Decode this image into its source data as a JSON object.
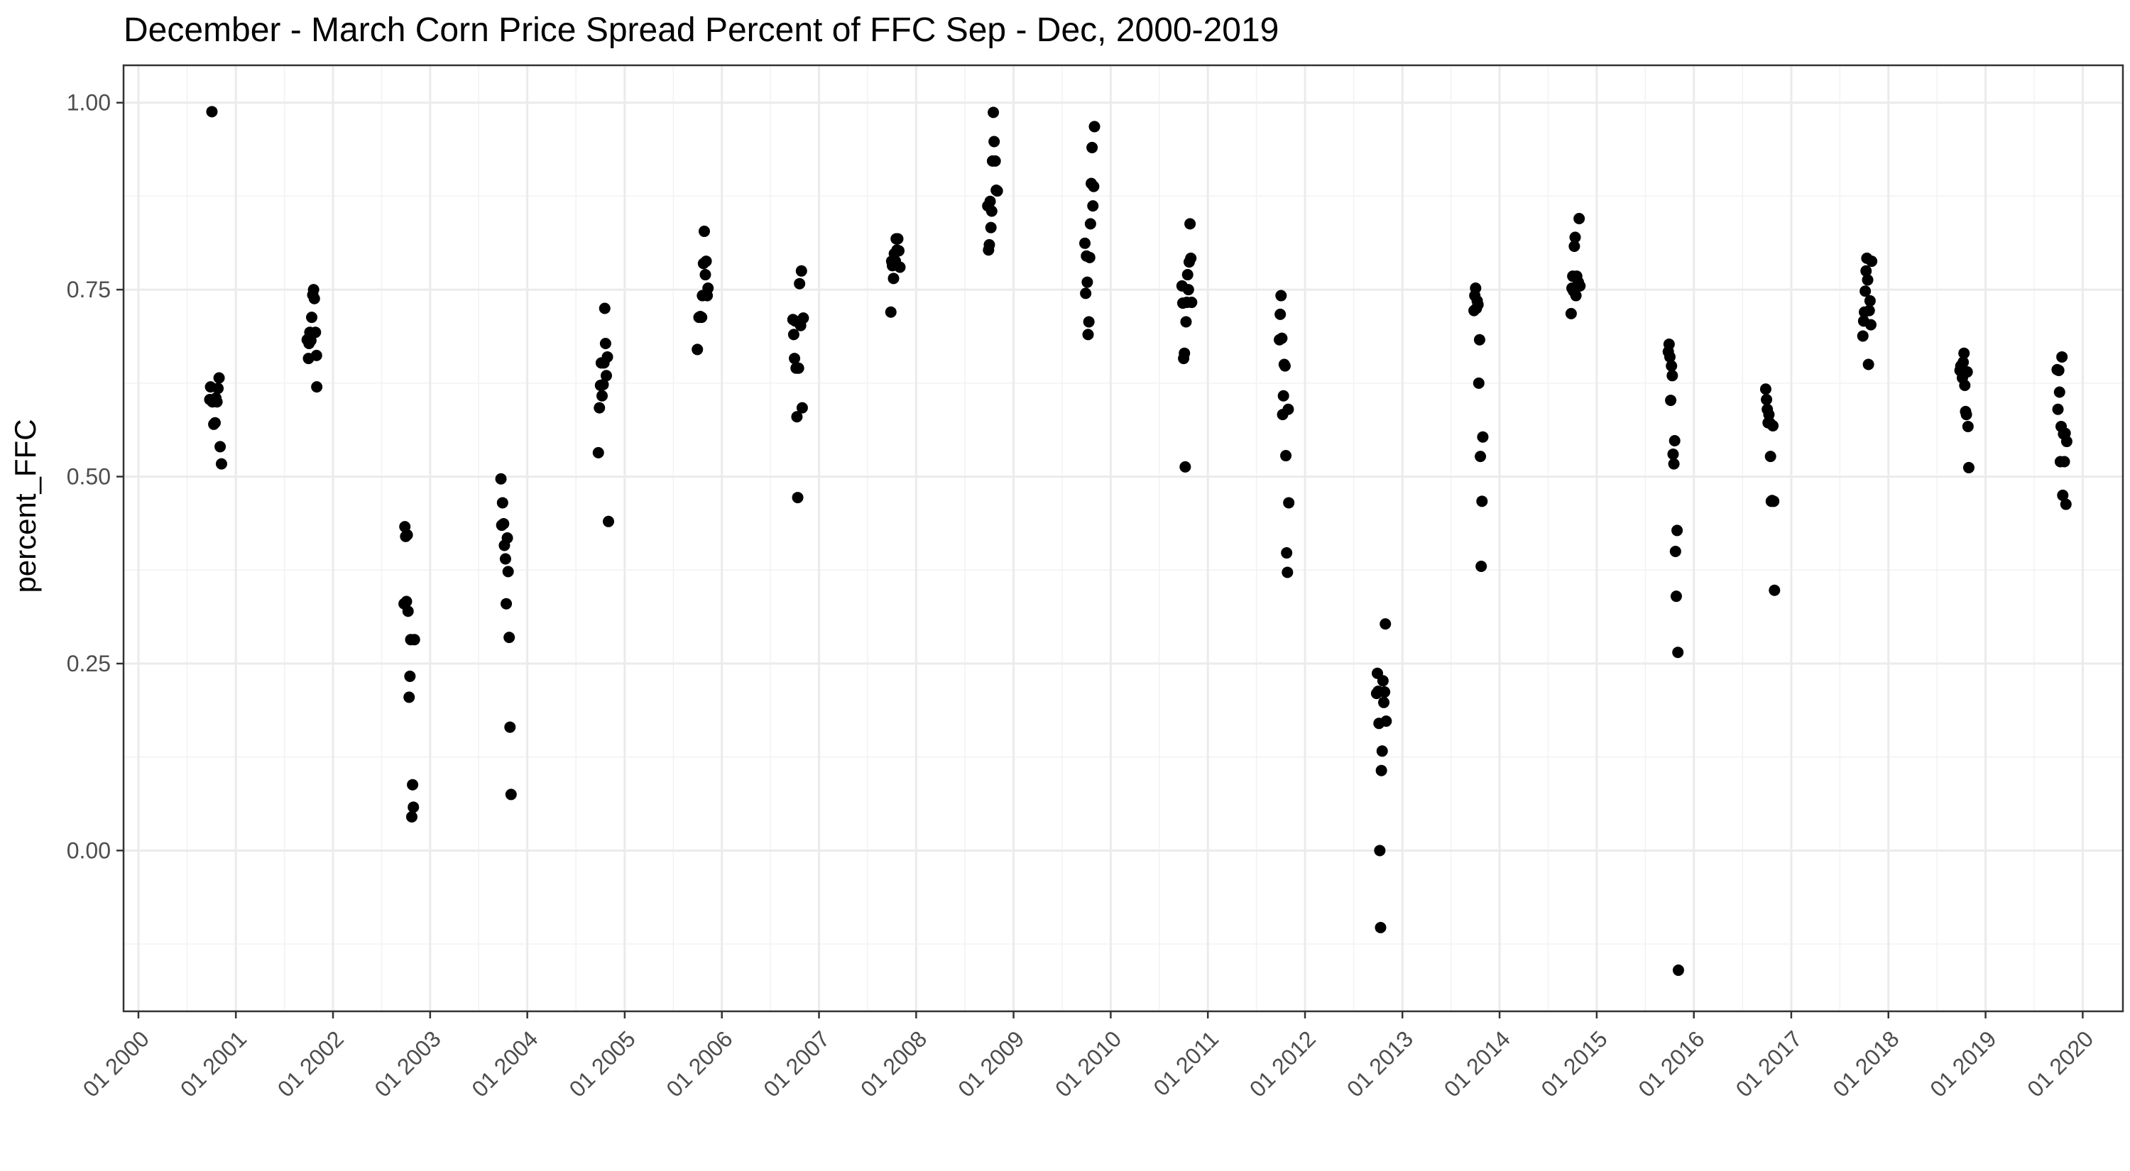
{
  "chart_data": {
    "type": "scatter",
    "title": "December - March Corn Price Spread Percent of FFC Sep - Dec, 2000-2019",
    "xlabel": "",
    "ylabel": "percent_FFC",
    "ylim": [
      -0.215,
      1.05
    ],
    "xlim": [
      "1999-11-06",
      "2020-05-31"
    ],
    "y_ticks": [
      0.0,
      0.25,
      0.5,
      0.75,
      1.0
    ],
    "y_tick_labels": [
      "0.00",
      "0.25",
      "0.50",
      "0.75",
      "1.00"
    ],
    "x_ticks": [
      "2000-01-01",
      "2001-01-01",
      "2002-01-01",
      "2003-01-01",
      "2004-01-01",
      "2005-01-01",
      "2006-01-01",
      "2007-01-01",
      "2008-01-01",
      "2009-01-01",
      "2010-01-01",
      "2011-01-01",
      "2012-01-01",
      "2013-01-01",
      "2014-01-01",
      "2015-01-01",
      "2016-01-01",
      "2017-01-01",
      "2018-01-01",
      "2019-01-01",
      "2020-01-01"
    ],
    "x_tick_labels": [
      "01 2000",
      "01 2001",
      "01 2002",
      "01 2003",
      "01 2004",
      "01 2005",
      "01 2006",
      "01 2007",
      "01 2008",
      "01 2009",
      "01 2010",
      "01 2011",
      "01 2012",
      "01 2013",
      "01 2014",
      "01 2015",
      "01 2016",
      "01 2017",
      "01 2018",
      "01 2019",
      "01 2020"
    ],
    "grid": true,
    "point_color": "#000000",
    "points": [
      [
        "2000-09-25",
        0.603
      ],
      [
        "2000-09-28",
        0.62
      ],
      [
        "2000-10-03",
        0.988
      ],
      [
        "2000-10-05",
        0.6
      ],
      [
        "2000-10-10",
        0.57
      ],
      [
        "2000-10-15",
        0.572
      ],
      [
        "2000-10-18",
        0.605
      ],
      [
        "2000-10-22",
        0.6
      ],
      [
        "2000-10-26",
        0.618
      ],
      [
        "2000-10-30",
        0.632
      ],
      [
        "2000-11-03",
        0.54
      ],
      [
        "2000-11-08",
        0.517
      ],
      [
        "2001-09-26",
        0.683
      ],
      [
        "2001-10-01",
        0.658
      ],
      [
        "2001-10-03",
        0.678
      ],
      [
        "2001-10-06",
        0.693
      ],
      [
        "2001-10-10",
        0.682
      ],
      [
        "2001-10-13",
        0.713
      ],
      [
        "2001-10-17",
        0.743
      ],
      [
        "2001-10-20",
        0.75
      ],
      [
        "2001-10-23",
        0.738
      ],
      [
        "2001-10-27",
        0.693
      ],
      [
        "2001-10-31",
        0.662
      ],
      [
        "2001-11-01",
        0.62
      ],
      [
        "2002-09-25",
        0.33
      ],
      [
        "2002-09-28",
        0.433
      ],
      [
        "2002-10-01",
        0.42
      ],
      [
        "2002-10-04",
        0.333
      ],
      [
        "2002-10-07",
        0.422
      ],
      [
        "2002-10-10",
        0.32
      ],
      [
        "2002-10-14",
        0.205
      ],
      [
        "2002-10-17",
        0.233
      ],
      [
        "2002-10-20",
        0.282
      ],
      [
        "2002-10-24",
        0.045
      ],
      [
        "2002-10-27",
        0.088
      ],
      [
        "2002-10-30",
        0.058
      ],
      [
        "2002-11-03",
        0.282
      ],
      [
        "2003-09-24",
        0.497
      ],
      [
        "2003-09-27",
        0.435
      ],
      [
        "2003-09-30",
        0.465
      ],
      [
        "2003-10-04",
        0.437
      ],
      [
        "2003-10-07",
        0.408
      ],
      [
        "2003-10-11",
        0.39
      ],
      [
        "2003-10-14",
        0.33
      ],
      [
        "2003-10-18",
        0.418
      ],
      [
        "2003-10-21",
        0.373
      ],
      [
        "2003-10-25",
        0.285
      ],
      [
        "2003-10-28",
        0.165
      ],
      [
        "2003-11-01",
        0.075
      ],
      [
        "2004-09-24",
        0.532
      ],
      [
        "2004-09-28",
        0.592
      ],
      [
        "2004-10-02",
        0.622
      ],
      [
        "2004-10-05",
        0.652
      ],
      [
        "2004-10-08",
        0.608
      ],
      [
        "2004-10-12",
        0.623
      ],
      [
        "2004-10-15",
        0.652
      ],
      [
        "2004-10-18",
        0.725
      ],
      [
        "2004-10-21",
        0.678
      ],
      [
        "2004-10-24",
        0.635
      ],
      [
        "2004-10-28",
        0.66
      ],
      [
        "2004-11-01",
        0.44
      ],
      [
        "2005-10-01",
        0.67
      ],
      [
        "2005-10-07",
        0.713
      ],
      [
        "2005-10-12",
        0.714
      ],
      [
        "2005-10-17",
        0.713
      ],
      [
        "2005-10-20",
        0.742
      ],
      [
        "2005-10-24",
        0.785
      ],
      [
        "2005-10-27",
        0.828
      ],
      [
        "2005-10-31",
        0.77
      ],
      [
        "2005-11-03",
        0.788
      ],
      [
        "2005-11-07",
        0.742
      ],
      [
        "2005-11-10",
        0.752
      ],
      [
        "2006-09-25",
        0.71
      ],
      [
        "2006-09-28",
        0.69
      ],
      [
        "2006-10-01",
        0.658
      ],
      [
        "2006-10-04",
        0.708
      ],
      [
        "2006-10-07",
        0.645
      ],
      [
        "2006-10-10",
        0.58
      ],
      [
        "2006-10-13",
        0.472
      ],
      [
        "2006-10-16",
        0.645
      ],
      [
        "2006-10-20",
        0.758
      ],
      [
        "2006-10-24",
        0.702
      ],
      [
        "2006-10-27",
        0.775
      ],
      [
        "2006-10-30",
        0.592
      ],
      [
        "2006-11-03",
        0.712
      ],
      [
        "2007-09-28",
        0.72
      ],
      [
        "2007-10-01",
        0.788
      ],
      [
        "2007-10-04",
        0.782
      ],
      [
        "2007-10-08",
        0.765
      ],
      [
        "2007-10-11",
        0.798
      ],
      [
        "2007-10-15",
        0.788
      ],
      [
        "2007-10-18",
        0.818
      ],
      [
        "2007-10-21",
        0.803
      ],
      [
        "2007-10-24",
        0.818
      ],
      [
        "2007-10-28",
        0.802
      ],
      [
        "2007-11-01",
        0.78
      ],
      [
        "2008-09-26",
        0.862
      ],
      [
        "2008-09-29",
        0.803
      ],
      [
        "2008-10-02",
        0.81
      ],
      [
        "2008-10-05",
        0.868
      ],
      [
        "2008-10-08",
        0.833
      ],
      [
        "2008-10-11",
        0.855
      ],
      [
        "2008-10-14",
        0.922
      ],
      [
        "2008-10-17",
        0.987
      ],
      [
        "2008-10-20",
        0.948
      ],
      [
        "2008-10-24",
        0.922
      ],
      [
        "2008-10-28",
        0.883
      ],
      [
        "2008-11-01",
        0.882
      ],
      [
        "2009-09-26",
        0.812
      ],
      [
        "2009-09-29",
        0.745
      ],
      [
        "2009-10-02",
        0.795
      ],
      [
        "2009-10-05",
        0.76
      ],
      [
        "2009-10-08",
        0.69
      ],
      [
        "2009-10-11",
        0.707
      ],
      [
        "2009-10-14",
        0.793
      ],
      [
        "2009-10-17",
        0.838
      ],
      [
        "2009-10-20",
        0.892
      ],
      [
        "2009-10-23",
        0.94
      ],
      [
        "2009-10-26",
        0.862
      ],
      [
        "2009-10-29",
        0.888
      ],
      [
        "2009-11-01",
        0.968
      ],
      [
        "2010-09-26",
        0.755
      ],
      [
        "2010-09-29",
        0.732
      ],
      [
        "2010-10-02",
        0.658
      ],
      [
        "2010-10-05",
        0.665
      ],
      [
        "2010-10-08",
        0.513
      ],
      [
        "2010-10-11",
        0.707
      ],
      [
        "2010-10-14",
        0.733
      ],
      [
        "2010-10-17",
        0.77
      ],
      [
        "2010-10-20",
        0.75
      ],
      [
        "2010-10-23",
        0.787
      ],
      [
        "2010-10-26",
        0.838
      ],
      [
        "2010-10-29",
        0.792
      ],
      [
        "2010-11-01",
        0.733
      ],
      [
        "2011-09-27",
        0.683
      ],
      [
        "2011-09-30",
        0.717
      ],
      [
        "2011-10-03",
        0.742
      ],
      [
        "2011-10-06",
        0.685
      ],
      [
        "2011-10-09",
        0.583
      ],
      [
        "2011-10-12",
        0.608
      ],
      [
        "2011-10-15",
        0.65
      ],
      [
        "2011-10-18",
        0.648
      ],
      [
        "2011-10-21",
        0.528
      ],
      [
        "2011-10-24",
        0.398
      ],
      [
        "2011-10-27",
        0.372
      ],
      [
        "2011-10-30",
        0.59
      ],
      [
        "2011-11-01",
        0.465
      ],
      [
        "2012-09-26",
        0.21
      ],
      [
        "2012-09-29",
        0.237
      ],
      [
        "2012-10-02",
        0.213
      ],
      [
        "2012-10-05",
        0.17
      ],
      [
        "2012-10-08",
        0.0
      ],
      [
        "2012-10-11",
        -0.103
      ],
      [
        "2012-10-14",
        0.107
      ],
      [
        "2012-10-17",
        0.133
      ],
      [
        "2012-10-20",
        0.227
      ],
      [
        "2012-10-23",
        0.198
      ],
      [
        "2012-10-26",
        0.212
      ],
      [
        "2012-10-29",
        0.303
      ],
      [
        "2012-11-01",
        0.173
      ],
      [
        "2013-09-27",
        0.722
      ],
      [
        "2013-09-30",
        0.742
      ],
      [
        "2013-10-03",
        0.752
      ],
      [
        "2013-10-06",
        0.725
      ],
      [
        "2013-10-09",
        0.735
      ],
      [
        "2013-10-12",
        0.73
      ],
      [
        "2013-10-15",
        0.625
      ],
      [
        "2013-10-18",
        0.683
      ],
      [
        "2013-10-21",
        0.527
      ],
      [
        "2013-10-24",
        0.38
      ],
      [
        "2013-10-27",
        0.467
      ],
      [
        "2013-10-30",
        0.553
      ],
      [
        "2014-09-27",
        0.718
      ],
      [
        "2014-09-30",
        0.752
      ],
      [
        "2014-10-03",
        0.768
      ],
      [
        "2014-10-06",
        0.748
      ],
      [
        "2014-10-09",
        0.808
      ],
      [
        "2014-10-12",
        0.82
      ],
      [
        "2014-10-15",
        0.742
      ],
      [
        "2014-10-18",
        0.768
      ],
      [
        "2014-10-21",
        0.755
      ],
      [
        "2014-10-24",
        0.76
      ],
      [
        "2014-10-27",
        0.845
      ],
      [
        "2014-10-30",
        0.755
      ],
      [
        "2015-09-27",
        0.667
      ],
      [
        "2015-09-30",
        0.677
      ],
      [
        "2015-10-03",
        0.66
      ],
      [
        "2015-10-06",
        0.602
      ],
      [
        "2015-10-09",
        0.648
      ],
      [
        "2015-10-12",
        0.635
      ],
      [
        "2015-10-15",
        0.53
      ],
      [
        "2015-10-18",
        0.517
      ],
      [
        "2015-10-21",
        0.548
      ],
      [
        "2015-10-24",
        0.4
      ],
      [
        "2015-10-27",
        0.34
      ],
      [
        "2015-10-30",
        0.428
      ],
      [
        "2015-11-02",
        0.265
      ],
      [
        "2015-11-04",
        -0.16
      ],
      [
        "2016-09-27",
        0.617
      ],
      [
        "2016-09-30",
        0.603
      ],
      [
        "2016-10-03",
        0.59
      ],
      [
        "2016-10-06",
        0.572
      ],
      [
        "2016-10-09",
        0.583
      ],
      [
        "2016-10-12",
        0.572
      ],
      [
        "2016-10-15",
        0.527
      ],
      [
        "2016-10-18",
        0.467
      ],
      [
        "2016-10-21",
        0.468
      ],
      [
        "2016-10-24",
        0.568
      ],
      [
        "2016-10-27",
        0.467
      ],
      [
        "2016-10-30",
        0.348
      ],
      [
        "2017-09-27",
        0.688
      ],
      [
        "2017-09-30",
        0.708
      ],
      [
        "2017-10-03",
        0.72
      ],
      [
        "2017-10-06",
        0.748
      ],
      [
        "2017-10-09",
        0.775
      ],
      [
        "2017-10-12",
        0.792
      ],
      [
        "2017-10-15",
        0.763
      ],
      [
        "2017-10-18",
        0.65
      ],
      [
        "2017-10-21",
        0.722
      ],
      [
        "2017-10-24",
        0.735
      ],
      [
        "2017-10-27",
        0.703
      ],
      [
        "2017-10-30",
        0.788
      ],
      [
        "2018-09-27",
        0.642
      ],
      [
        "2018-09-30",
        0.648
      ],
      [
        "2018-10-03",
        0.64
      ],
      [
        "2018-10-06",
        0.632
      ],
      [
        "2018-10-09",
        0.653
      ],
      [
        "2018-10-12",
        0.665
      ],
      [
        "2018-10-15",
        0.622
      ],
      [
        "2018-10-18",
        0.587
      ],
      [
        "2018-10-21",
        0.583
      ],
      [
        "2018-10-24",
        0.64
      ],
      [
        "2018-10-27",
        0.567
      ],
      [
        "2018-10-30",
        0.512
      ],
      [
        "2019-09-27",
        0.643
      ],
      [
        "2019-09-30",
        0.59
      ],
      [
        "2019-10-03",
        0.642
      ],
      [
        "2019-10-06",
        0.613
      ],
      [
        "2019-10-09",
        0.52
      ],
      [
        "2019-10-12",
        0.567
      ],
      [
        "2019-10-15",
        0.66
      ],
      [
        "2019-10-18",
        0.475
      ],
      [
        "2019-10-21",
        0.557
      ],
      [
        "2019-10-24",
        0.52
      ],
      [
        "2019-10-27",
        0.558
      ],
      [
        "2019-10-30",
        0.463
      ],
      [
        "2019-11-02",
        0.547
      ]
    ]
  }
}
